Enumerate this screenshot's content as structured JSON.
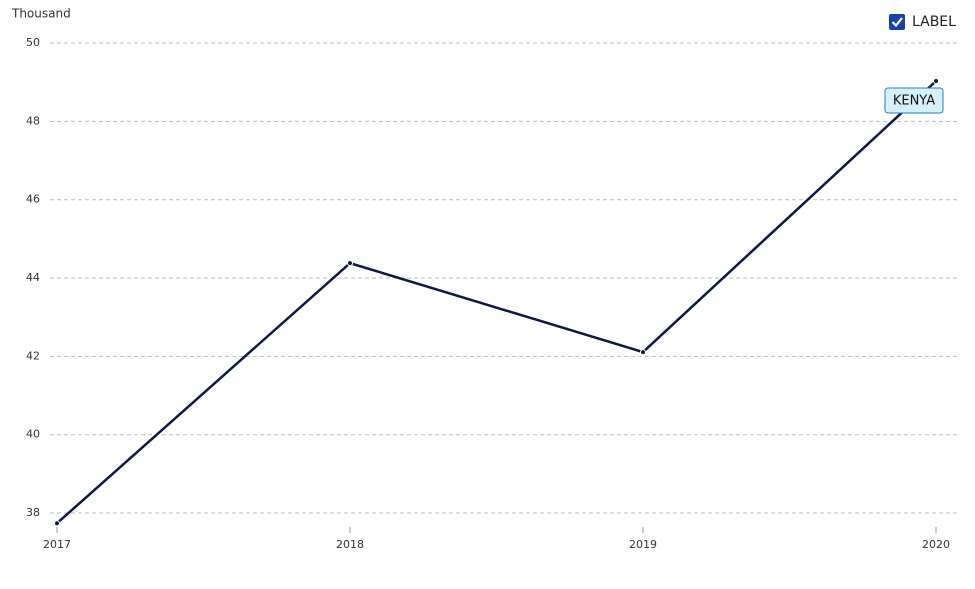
{
  "chart_data": {
    "type": "line",
    "y_axis_label": "Thousand",
    "categories": [
      "2017",
      "2018",
      "2019",
      "2020"
    ],
    "series": [
      {
        "name": "KENYA",
        "color": "#0b1a3e",
        "values": [
          37.74,
          44.38,
          42.11,
          49.03
        ]
      }
    ],
    "ylim": [
      37.7,
      50.2
    ],
    "yticks": [
      38,
      40,
      42,
      44,
      46,
      48,
      50
    ],
    "grid": true,
    "label_toggle": {
      "text": "LABEL",
      "checked": true
    }
  }
}
